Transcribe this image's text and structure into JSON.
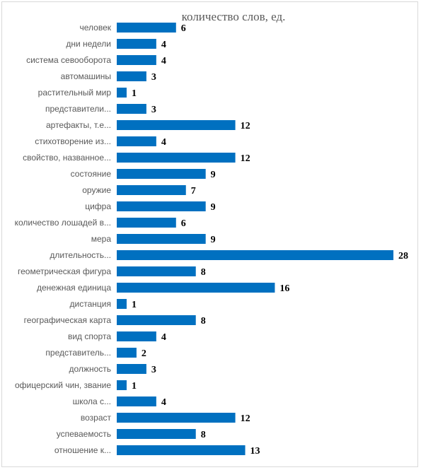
{
  "chart_data": {
    "type": "bar",
    "orientation": "horizontal",
    "title": "количество слов, ед.",
    "categories": [
      "человек",
      "дни недели",
      "система севооборота",
      "автомашины",
      "растительный мир",
      "представители...",
      "артефакты, т.е...",
      "стихотворение из...",
      "свойство, названное...",
      "состояние",
      "оружие",
      "цифра",
      "количество лошадей в...",
      "мера",
      "длительность...",
      "геометрическая фигура",
      "денежная единица",
      "дистанция",
      "географическая карта",
      "вид спорта",
      "представитель...",
      "должность",
      "офицерский чин, звание",
      "школа с...",
      "возраст",
      "успеваемость",
      "отношение к..."
    ],
    "values": [
      6,
      4,
      4,
      3,
      1,
      3,
      12,
      4,
      12,
      9,
      7,
      9,
      6,
      9,
      28,
      8,
      16,
      1,
      8,
      4,
      2,
      3,
      1,
      4,
      12,
      8,
      13
    ],
    "xlim": [
      0,
      28
    ],
    "grid": false,
    "legend": "none",
    "bar_color": "#0070C0"
  }
}
